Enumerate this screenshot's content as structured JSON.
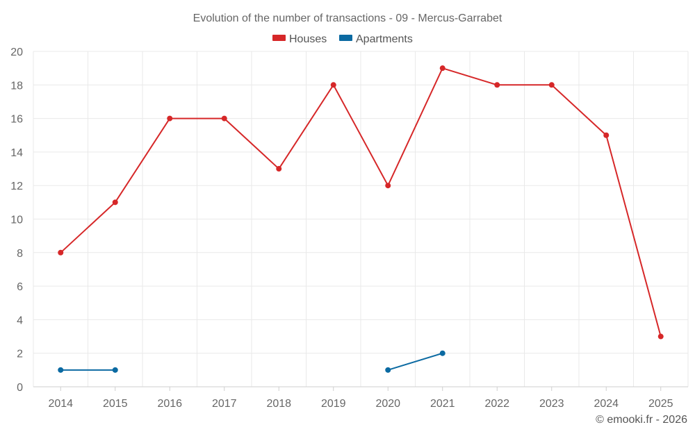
{
  "chart_data": {
    "type": "line",
    "title": "Evolution of the number of transactions - 09 - Mercus-Garrabet",
    "xlabel": "",
    "ylabel": "",
    "categories": [
      "2014",
      "2015",
      "2016",
      "2017",
      "2018",
      "2019",
      "2020",
      "2021",
      "2022",
      "2023",
      "2024",
      "2025"
    ],
    "ylim": [
      0,
      20
    ],
    "yticks": [
      0,
      2,
      4,
      6,
      8,
      10,
      12,
      14,
      16,
      18,
      20
    ],
    "grid": true,
    "legend_position": "top-center",
    "series": [
      {
        "name": "Houses",
        "color": "#d62728",
        "values": [
          8,
          11,
          16,
          16,
          13,
          18,
          12,
          19,
          18,
          18,
          15,
          3
        ]
      },
      {
        "name": "Apartments",
        "color": "#0b6aa2",
        "values": [
          1,
          1,
          null,
          null,
          null,
          null,
          1,
          2,
          null,
          null,
          null,
          null
        ]
      }
    ]
  },
  "footer": {
    "copyright": "© emooki.fr - 2026"
  }
}
